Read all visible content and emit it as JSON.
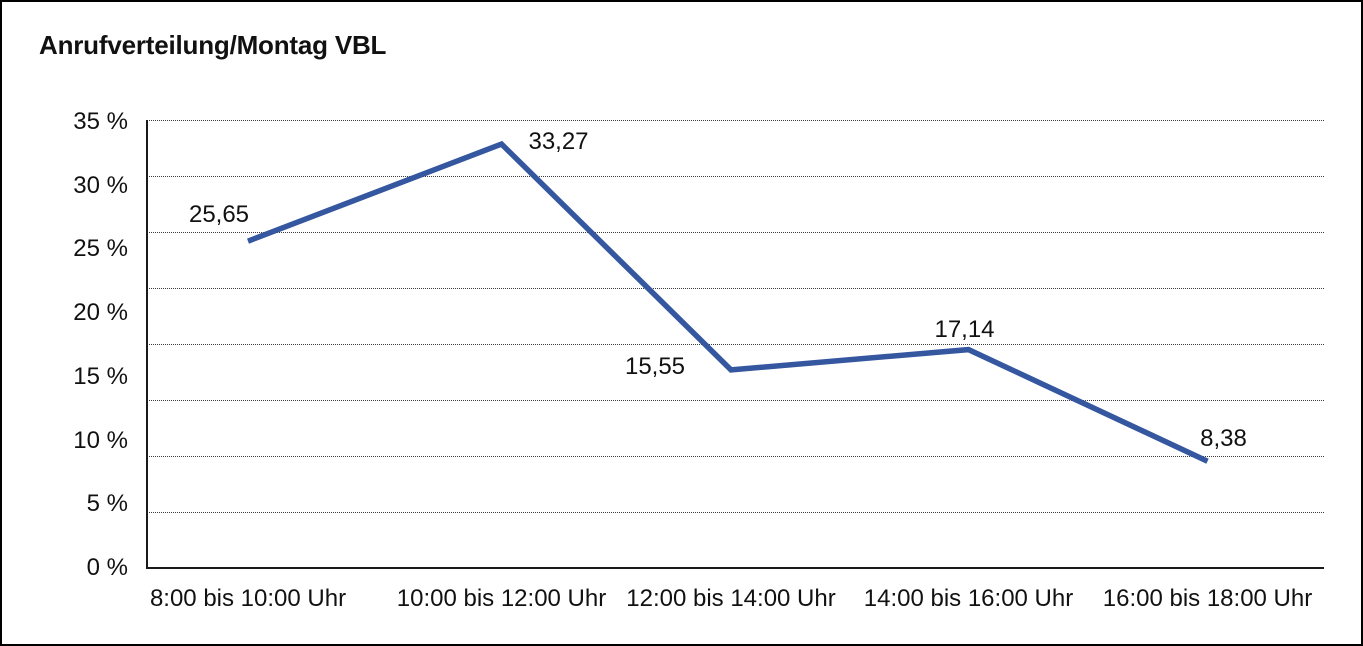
{
  "title": "Anrufverteilung/Montag VBL",
  "chart_data": {
    "type": "line",
    "title": "Anrufverteilung/Montag VBL",
    "categories": [
      "8:00 bis 10:00 Uhr",
      "10:00 bis 12:00 Uhr",
      "12:00 bis 14:00 Uhr",
      "14:00 bis 16:00 Uhr",
      "16:00 bis 18:00 Uhr"
    ],
    "values": [
      25.65,
      33.27,
      15.55,
      17.14,
      8.38
    ],
    "point_labels": [
      "25,65",
      "33,27",
      "15,55",
      "17,14",
      "8,38"
    ],
    "xlabel": "",
    "ylabel": "",
    "ylim": [
      0,
      35
    ],
    "ytick_step": 5,
    "ytick_labels": [
      "0 %",
      "5 %",
      "10 %",
      "15 %",
      "20 %",
      "25 %",
      "30 %",
      "35 %"
    ],
    "grid": "horizontal-dotted",
    "legend_position": "none",
    "series_name": "Anrufverteilung Montag VBL"
  },
  "colors": {
    "line": "#3557A0",
    "text": "#111111",
    "grid": "#3a3a3a",
    "axis": "#1a1a1a",
    "border": "#000000",
    "background": "#ffffff"
  }
}
